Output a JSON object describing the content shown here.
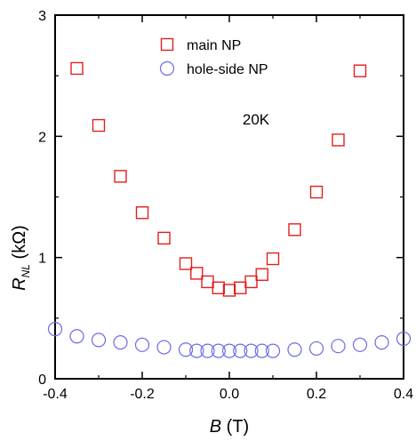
{
  "chart_data": {
    "type": "scatter",
    "xlim": [
      -0.4,
      0.4
    ],
    "ylim": [
      0,
      3
    ],
    "xticks": [
      -0.4,
      -0.2,
      0,
      0.2,
      0.4
    ],
    "xtick_labels": [
      "-0.4",
      "-0.2",
      "0.0",
      "0.2",
      "0.4"
    ],
    "yticks": [
      0,
      1,
      2,
      3
    ],
    "ytick_labels": [
      "0",
      "1",
      "2",
      "3"
    ],
    "xlabel": {
      "italic": "B",
      "rest": " (T)"
    },
    "ylabel": {
      "main": "R",
      "sub": "NL",
      "rest": " (kΩ)"
    },
    "annotation": "20K",
    "legend_position": "top-center",
    "grid": false,
    "series": [
      {
        "name": "main NP",
        "marker": "square",
        "color": "#e02020",
        "x": [
          -0.35,
          -0.3,
          -0.25,
          -0.2,
          -0.15,
          -0.1,
          -0.075,
          -0.05,
          -0.025,
          0.0,
          0.025,
          0.05,
          0.075,
          0.1,
          0.15,
          0.2,
          0.25,
          0.3
        ],
        "y": [
          2.56,
          2.09,
          1.67,
          1.37,
          1.16,
          0.95,
          0.87,
          0.8,
          0.75,
          0.73,
          0.75,
          0.8,
          0.86,
          0.99,
          1.23,
          1.54,
          1.97,
          2.54
        ]
      },
      {
        "name": "hole-side NP",
        "marker": "circle",
        "color": "#6a6ae8",
        "x": [
          -0.4,
          -0.35,
          -0.3,
          -0.25,
          -0.2,
          -0.15,
          -0.1,
          -0.075,
          -0.05,
          -0.025,
          0.0,
          0.025,
          0.05,
          0.075,
          0.1,
          0.15,
          0.2,
          0.25,
          0.3,
          0.35,
          0.4
        ],
        "y": [
          0.41,
          0.35,
          0.32,
          0.3,
          0.28,
          0.26,
          0.24,
          0.23,
          0.23,
          0.23,
          0.23,
          0.23,
          0.23,
          0.23,
          0.23,
          0.24,
          0.25,
          0.27,
          0.28,
          0.3,
          0.33
        ]
      }
    ]
  }
}
